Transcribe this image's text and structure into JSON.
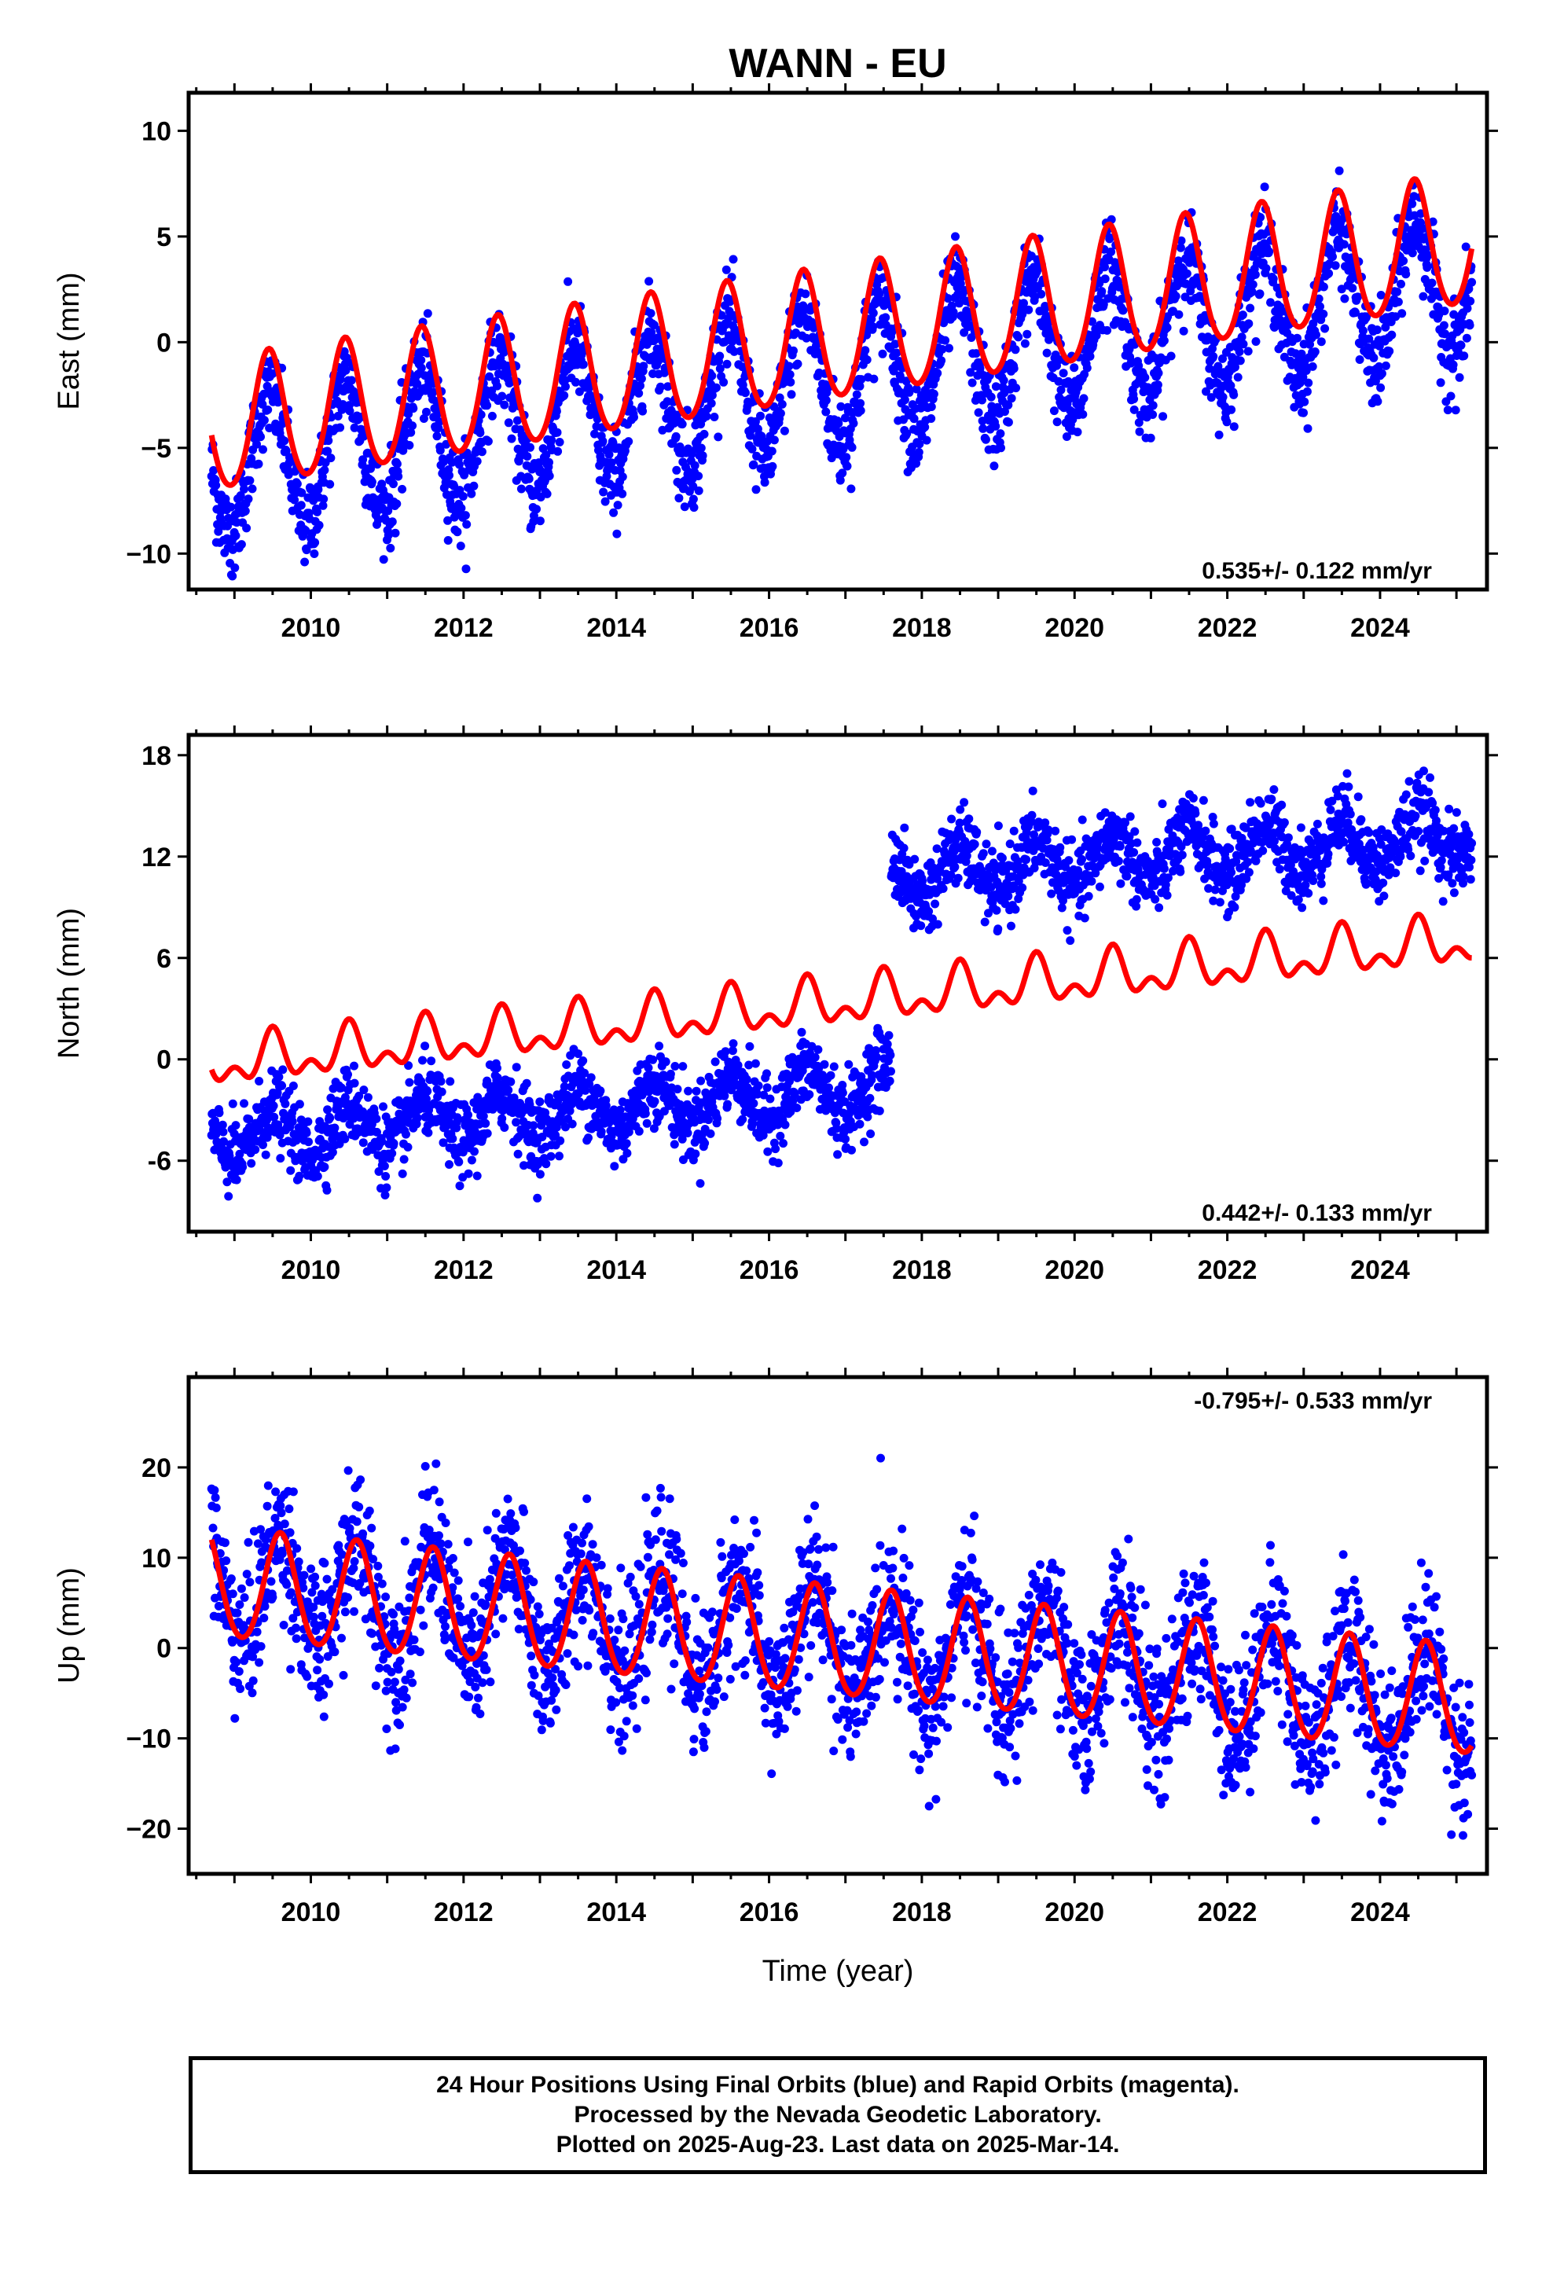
{
  "title": "WANN - EU",
  "xlabel": "Time (year)",
  "footer_lines": [
    "24 Hour Positions Using Final Orbits (blue) and Rapid Orbits (magenta).",
    "Processed by the Nevada Geodetic Laboratory.",
    "Plotted on 2025-Aug-23. Last data on 2025-Mar-14."
  ],
  "colors": {
    "points": "#0000ff",
    "model": "#ff0000",
    "frame": "#000000"
  },
  "chart_data": [
    {
      "type": "scatter",
      "ylabel": "East (mm)",
      "rate_label": "0.535+/- 0.122 mm/yr",
      "xlim": [
        2008.4,
        2025.4
      ],
      "ylim": [
        -11.7,
        11.8
      ],
      "xticks": [
        2010,
        2012,
        2014,
        2016,
        2018,
        2020,
        2022,
        2024
      ],
      "yticks": [
        10,
        5,
        0,
        -5,
        -10
      ],
      "ytick_labels": [
        "10",
        "5",
        "0",
        "−5",
        "−10"
      ],
      "series": [
        {
          "kind": "observed",
          "x_range": [
            2008.7,
            2025.2
          ],
          "trend_start": -6.0,
          "rate": 0.535,
          "annual_amplitude": 3.2,
          "annual_peak": 0.45,
          "scatter": 1.1
        },
        {
          "kind": "model",
          "x_range": [
            2008.7,
            2025.2
          ],
          "offset_start": -4.1,
          "rate": 0.535,
          "annual_amplitude": 3.1,
          "annual_peak": 0.45,
          "semiannual_amplitude": 0.3
        }
      ]
    },
    {
      "type": "scatter",
      "ylabel": "North (mm)",
      "rate_label": "0.442+/- 0.133 mm/yr",
      "xlim": [
        2008.4,
        2025.4
      ],
      "ylim": [
        -10.2,
        19.2
      ],
      "xticks": [
        2010,
        2012,
        2014,
        2016,
        2018,
        2020,
        2022,
        2024
      ],
      "yticks": [
        18,
        12,
        6,
        0,
        -6
      ],
      "ytick_labels": [
        "18",
        "12",
        "6",
        "0",
        "-6"
      ],
      "series": [
        {
          "kind": "observed",
          "x_range": [
            2008.7,
            2025.2
          ],
          "offset_start": -4.6,
          "rate": 0.33,
          "annual_amplitude": 1.4,
          "annual_peak": 0.5,
          "scatter": 1.1,
          "jump_epoch": 2017.6,
          "jump_size": 12.5
        },
        {
          "kind": "model",
          "x_range": [
            2008.7,
            2025.2
          ],
          "offset_start": -0.3,
          "rate": 0.442,
          "annual_amplitude": 1.1,
          "annual_peak": 0.5,
          "semiannual_amplitude": 0.8
        }
      ]
    },
    {
      "type": "scatter",
      "ylabel": "Up (mm)",
      "rate_label": "-0.795+/- 0.533 mm/yr",
      "xlim": [
        2008.4,
        2025.4
      ],
      "ylim": [
        -25,
        30
      ],
      "xticks": [
        2010,
        2012,
        2014,
        2016,
        2018,
        2020,
        2022,
        2024
      ],
      "yticks": [
        20,
        10,
        0,
        -10,
        -20
      ],
      "ytick_labels": [
        "20",
        "10",
        "0",
        "−10",
        "−20"
      ],
      "series": [
        {
          "kind": "observed",
          "x_range": [
            2008.7,
            2025.2
          ],
          "offset_start": 7.0,
          "rate": -0.795,
          "annual_amplitude": 6.0,
          "annual_peak": 0.6,
          "scatter": 4.0
        },
        {
          "kind": "model",
          "x_range": [
            2008.7,
            2025.2
          ],
          "offset_start": 7.0,
          "rate": -0.795,
          "annual_amplitude": 6.0,
          "annual_peak": 0.6,
          "semiannual_amplitude": 0.5
        }
      ]
    }
  ]
}
